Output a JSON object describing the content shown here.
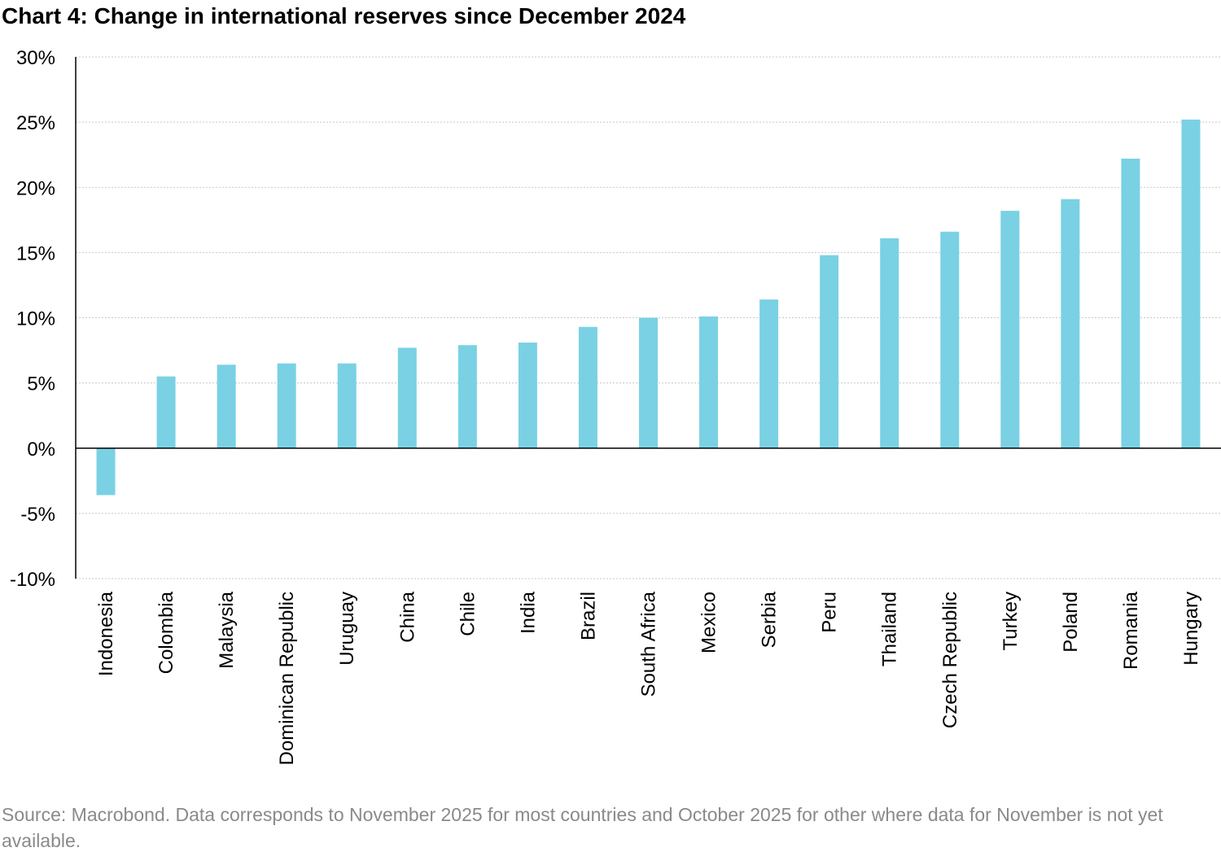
{
  "chart_data": {
    "type": "bar",
    "title": "Chart 4: Change in international reserves since December 2024",
    "xlabel": "",
    "ylabel": "",
    "ylim": [
      -10,
      30
    ],
    "yticks": [
      -10,
      -5,
      0,
      5,
      10,
      15,
      20,
      25,
      30
    ],
    "ytick_labels": [
      "-10%",
      "-5%",
      "0%",
      "5%",
      "10%",
      "15%",
      "20%",
      "25%",
      "30%"
    ],
    "grid": true,
    "bar_color": "#7ad1e4",
    "categories": [
      "Indonesia",
      "Colombia",
      "Malaysia",
      "Dominican Republic",
      "Uruguay",
      "China",
      "Chile",
      "India",
      "Brazil",
      "South Africa",
      "Mexico",
      "Serbia",
      "Peru",
      "Thailand",
      "Czech Republic",
      "Turkey",
      "Poland",
      "Romania",
      "Hungary"
    ],
    "values": [
      -3.6,
      5.5,
      6.4,
      6.5,
      6.5,
      7.7,
      7.9,
      8.1,
      9.3,
      10.0,
      10.1,
      11.4,
      14.8,
      16.1,
      16.6,
      18.2,
      19.1,
      22.2,
      25.2
    ]
  },
  "source": "Source: Macrobond. Data corresponds to November 2025 for most countries and October 2025 for other where data for November is not yet available."
}
